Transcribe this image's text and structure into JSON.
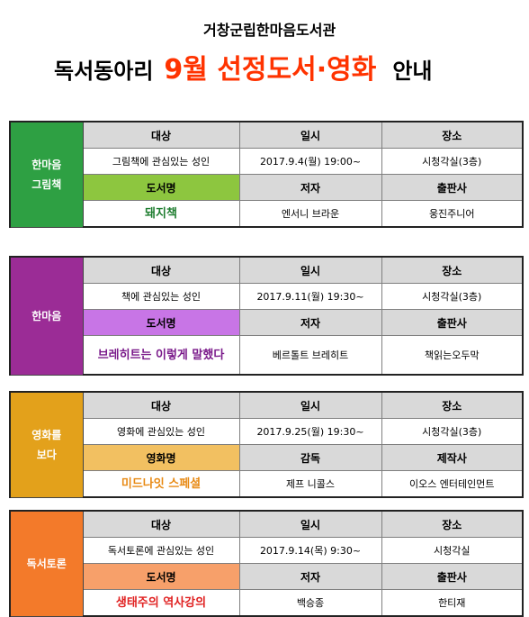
{
  "header": {
    "organization": "거창군립한마음도서관",
    "title_part1": "독서동아리",
    "title_highlight": "9월  선정도서·영화",
    "title_part3": "안내"
  },
  "clubs": [
    {
      "name_line1": "한마음",
      "name_line2": "그림책",
      "color": "#2ea043",
      "h_target": "대상",
      "h_date": "일시",
      "h_place": "장소",
      "target": "그림책에 관심있는 성인",
      "date": "2017.9.4(월) 19:00~",
      "place": "시청각실(3층)",
      "h_item": "도서명",
      "h_creator": "저자",
      "h_publisher": "출판사",
      "item_header_color": "#8dc63f",
      "item": "돼지책",
      "item_color": "#1e7d2f",
      "creator": "엔서니 브라운",
      "publisher": "웅진주니어"
    },
    {
      "name_line1": "한마음",
      "name_line2": "",
      "color": "#9b2c96",
      "h_target": "대상",
      "h_date": "일시",
      "h_place": "장소",
      "target": "책에 관심있는 성인",
      "date": "2017.9.11(월) 19:30~",
      "place": "시청각실(3층)",
      "h_item": "도서명",
      "h_creator": "저자",
      "h_publisher": "출판사",
      "item_header_color": "#c875e6",
      "item": "브레히트는 이렇게 말했다",
      "item_color": "#7a1a8a",
      "creator": "베르톨트 브레히트",
      "publisher": "책읽는오두막"
    },
    {
      "name_line1": "영화를",
      "name_line2": "보다",
      "color": "#e3a11b",
      "h_target": "대상",
      "h_date": "일시",
      "h_place": "장소",
      "target": "영화에 관심있는 성인",
      "date": "2017.9.25(월) 19:30~",
      "place": "시청각실(3층)",
      "h_item": "영화명",
      "h_creator": "감독",
      "h_publisher": "제작사",
      "item_header_color": "#f2c061",
      "item": "미드나잇 스페셜",
      "item_color": "#e88a14",
      "creator": "제프 니콜스",
      "publisher": "이오스 엔터테인먼트"
    },
    {
      "name_line1": "독서토론",
      "name_line2": "",
      "color": "#f37a2a",
      "h_target": "대상",
      "h_date": "일시",
      "h_place": "장소",
      "target": "독서토론에 관심있는 성인",
      "date": "2017.9.14(목) 9:30~",
      "place": "시청각실",
      "h_item": "도서명",
      "h_creator": "저자",
      "h_publisher": "출판사",
      "item_header_color": "#f7a06a",
      "item": "생태주의 역사강의",
      "item_color": "#e02020",
      "creator": "백승종",
      "publisher": "한티재"
    }
  ]
}
